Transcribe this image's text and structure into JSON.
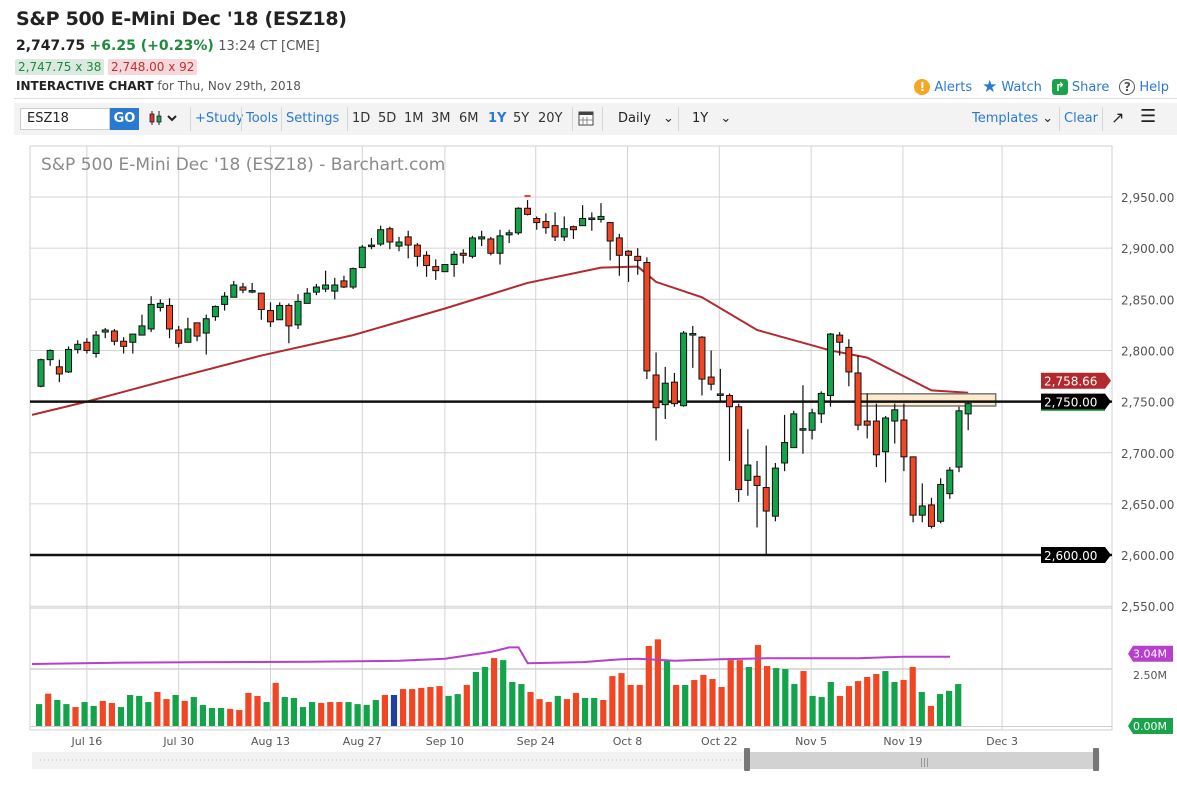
{
  "header": {
    "title": "S&P 500 E-Mini Dec '18 (ESZ18)",
    "last": "2,747.75",
    "change": "+6.25 (+0.23%)",
    "time": "13:24 CT [CME]",
    "bid": "2,747.75 x 38",
    "ask": "2,748.00 x 92",
    "chart_label": "INTERACTIVE CHART",
    "chart_for": "for Thu, Nov 29th, 2018"
  },
  "actions": [
    {
      "label": "Alerts",
      "icon": "alert-icon",
      "color": "#f5a623"
    },
    {
      "label": "Watch",
      "icon": "star-icon",
      "color": "#2a7ad1"
    },
    {
      "label": "Share",
      "icon": "share-icon",
      "color": "#1aa34a"
    },
    {
      "label": "Help",
      "icon": "help-icon",
      "color": "#555555"
    }
  ],
  "toolbar": {
    "symbol": "ESZ18",
    "go": "GO",
    "study": "+Study",
    "tools": "Tools",
    "settings": "Settings",
    "ranges": [
      "1D",
      "5D",
      "1M",
      "3M",
      "6M",
      "1Y",
      "5Y",
      "20Y"
    ],
    "selected_range": "1Y",
    "interval": "Daily",
    "period": "1Y",
    "templates": "Templates",
    "clear": "Clear"
  },
  "chart_data": {
    "type": "candlestick",
    "title": "S&P 500 E-Mini Dec '18 (ESZ18) - Barchart.com",
    "y_ticks": [
      "2,950.00",
      "2,900.00",
      "2,850.00",
      "2,800.00",
      "2,750.00",
      "2,700.00",
      "2,650.00",
      "2,600.00",
      "2,550.00"
    ],
    "y_tick_values": [
      2950,
      2900,
      2850,
      2800,
      2750,
      2700,
      2650,
      2600,
      2550
    ],
    "ylim": [
      2550,
      2950
    ],
    "x_ticks": [
      "Jul 16",
      "Jul 30",
      "Aug 13",
      "Aug 27",
      "Sep 10",
      "Sep 24",
      "Oct 8",
      "Oct 22",
      "Nov 5",
      "Nov 19",
      "Dec 3"
    ],
    "x_tick_index": [
      5,
      15,
      25,
      35,
      44,
      54,
      64,
      74,
      84,
      94,
      104.8
    ],
    "candles_ohlc": [
      [
        2765,
        2792,
        2764,
        2791
      ],
      [
        2791,
        2801,
        2785,
        2800
      ],
      [
        2784,
        2791,
        2769,
        2777
      ],
      [
        2779,
        2804,
        2778,
        2801
      ],
      [
        2801,
        2810,
        2797,
        2806
      ],
      [
        2808,
        2812,
        2797,
        2800
      ],
      [
        2797,
        2819,
        2793,
        2815
      ],
      [
        2818,
        2822,
        2812,
        2820
      ],
      [
        2819,
        2821,
        2805,
        2809
      ],
      [
        2809,
        2813,
        2797,
        2804
      ],
      [
        2808,
        2816,
        2797,
        2816
      ],
      [
        2815,
        2835,
        2815,
        2824
      ],
      [
        2821,
        2853,
        2818,
        2845
      ],
      [
        2842,
        2850,
        2838,
        2846
      ],
      [
        2844,
        2851,
        2812,
        2821
      ],
      [
        2820,
        2824,
        2803,
        2807
      ],
      [
        2808,
        2832,
        2808,
        2821
      ],
      [
        2827,
        2827,
        2809,
        2814
      ],
      [
        2817,
        2835,
        2796,
        2831
      ],
      [
        2833,
        2844,
        2829,
        2843
      ],
      [
        2845,
        2857,
        2839,
        2853
      ],
      [
        2852,
        2868,
        2852,
        2864
      ],
      [
        2862,
        2866,
        2856,
        2859
      ],
      [
        2858,
        2866,
        2856,
        2858.5
      ],
      [
        2856,
        2856,
        2830,
        2840
      ],
      [
        2839,
        2847,
        2823,
        2828
      ],
      [
        2830,
        2847,
        2830,
        2844
      ],
      [
        2844,
        2846,
        2807,
        2824
      ],
      [
        2825,
        2855,
        2821,
        2848
      ],
      [
        2846,
        2861,
        2846,
        2856
      ],
      [
        2857,
        2865,
        2854,
        2862
      ],
      [
        2860,
        2878,
        2857,
        2864
      ],
      [
        2858,
        2871,
        2850,
        2864
      ],
      [
        2868,
        2873,
        2861,
        2862
      ],
      [
        2862,
        2881,
        2860,
        2880
      ],
      [
        2881,
        2903,
        2881,
        2901
      ],
      [
        2902,
        2910,
        2899,
        2903
      ],
      [
        2904,
        2922,
        2902,
        2918
      ],
      [
        2919,
        2921,
        2899,
        2906
      ],
      [
        2902,
        2911,
        2897,
        2906
      ],
      [
        2911,
        2917,
        2890,
        2903
      ],
      [
        2903,
        2905,
        2882,
        2892
      ],
      [
        2893,
        2897,
        2872,
        2883
      ],
      [
        2882,
        2889,
        2869,
        2878
      ],
      [
        2877,
        2884,
        2877,
        2884
      ],
      [
        2884,
        2897,
        2872,
        2894
      ],
      [
        2895,
        2899,
        2885,
        2893
      ],
      [
        2892,
        2912,
        2890,
        2910
      ],
      [
        2909,
        2917,
        2902,
        2911
      ],
      [
        2909,
        2911,
        2893,
        2895
      ],
      [
        2895,
        2918,
        2884,
        2912
      ],
      [
        2913,
        2918,
        2905,
        2915
      ],
      [
        2915,
        2940,
        2913,
        2939
      ],
      [
        2939,
        2947,
        2932,
        2933
      ],
      [
        2929,
        2931,
        2918,
        2925
      ],
      [
        2926,
        2934,
        2914,
        2920
      ],
      [
        2922,
        2935,
        2907,
        2911
      ],
      [
        2911,
        2931,
        2907,
        2919
      ],
      [
        2921,
        2922,
        2909,
        2918
      ],
      [
        2922,
        2942,
        2922,
        2929
      ],
      [
        2929,
        2935,
        2917,
        2929.5
      ],
      [
        2928,
        2944,
        2925,
        2931
      ],
      [
        2925,
        2925,
        2888,
        2907
      ],
      [
        2910,
        2914,
        2873,
        2893
      ],
      [
        2897,
        2898,
        2867,
        2893
      ],
      [
        2892,
        2900,
        2874,
        2888
      ],
      [
        2886,
        2891,
        2772,
        2780
      ],
      [
        2776,
        2798,
        2712,
        2744
      ],
      [
        2747,
        2784,
        2733,
        2768
      ],
      [
        2769,
        2778,
        2745,
        2748
      ],
      [
        2746,
        2819,
        2745,
        2817
      ],
      [
        2816,
        2824,
        2783,
        2816.5
      ],
      [
        2813,
        2814,
        2756,
        2772
      ],
      [
        2774,
        2800,
        2761,
        2767
      ],
      [
        2757,
        2782,
        2751,
        2757.5
      ],
      [
        2756,
        2758,
        2692,
        2745
      ],
      [
        2745,
        2748,
        2652,
        2664
      ],
      [
        2673,
        2723,
        2658,
        2688
      ],
      [
        2677,
        2692,
        2627,
        2668
      ],
      [
        2666,
        2707,
        2599,
        2643
      ],
      [
        2638,
        2690,
        2633,
        2685
      ],
      [
        2690,
        2737,
        2682,
        2710
      ],
      [
        2705,
        2741,
        2705,
        2738
      ],
      [
        2723,
        2766,
        2699,
        2723.5
      ],
      [
        2722,
        2743,
        2713,
        2739
      ],
      [
        2738,
        2760,
        2729,
        2758
      ],
      [
        2756,
        2817,
        2745,
        2816
      ],
      [
        2815,
        2818,
        2795,
        2808
      ],
      [
        2803,
        2811,
        2765,
        2779
      ],
      [
        2778,
        2795,
        2722,
        2727
      ],
      [
        2731,
        2758,
        2714,
        2727
      ],
      [
        2731,
        2748,
        2686,
        2698
      ],
      [
        2701,
        2736,
        2671,
        2734
      ],
      [
        2731,
        2748,
        2709,
        2742
      ],
      [
        2732,
        2748,
        2682,
        2696
      ],
      [
        2696,
        2696,
        2632,
        2639
      ],
      [
        2639,
        2670,
        2632,
        2648
      ],
      [
        2649,
        2656,
        2626,
        2628
      ],
      [
        2633,
        2675,
        2631,
        2669
      ],
      [
        2660,
        2686,
        2655,
        2683
      ],
      [
        2686,
        2745,
        2681,
        2741
      ],
      [
        2738,
        2749,
        2722,
        2748
      ]
    ],
    "high_marker": 2951,
    "moving_average": {
      "points": [
        [
          0,
          2737
        ],
        [
          5,
          2750
        ],
        [
          15,
          2774
        ],
        [
          24,
          2795
        ],
        [
          34,
          2815
        ],
        [
          44,
          2841
        ],
        [
          53,
          2866
        ],
        [
          61,
          2881
        ],
        [
          65,
          2882
        ],
        [
          67,
          2867
        ],
        [
          72,
          2852
        ],
        [
          78,
          2820
        ],
        [
          86,
          2800
        ],
        [
          90,
          2793
        ],
        [
          97,
          2761
        ],
        [
          101,
          2758.66
        ]
      ],
      "color": "#b22a2e"
    },
    "horizontal_lines": [
      2750,
      2600
    ],
    "zone": {
      "from_index": 89,
      "to_index": 104,
      "low": 2745.7,
      "high": 2757.6
    },
    "price_tags": [
      {
        "label": "2,758.66",
        "value": 2758.66,
        "color": "#b22a2e"
      },
      {
        "label": "2,750.00",
        "value": 2750,
        "color": "#000000"
      },
      {
        "label": "2,600.00",
        "value": 2600,
        "color": "#000000"
      }
    ],
    "volume": {
      "unit": "M",
      "ylim": [
        0,
        3.8
      ],
      "ticks": [
        "2.50M"
      ],
      "tick_values": [
        2.5
      ],
      "tags": [
        {
          "label": "3.04M",
          "value": 3.04,
          "color": "#b73fcc"
        },
        {
          "label": "0.00M",
          "value": 0,
          "color": "#1aa34a"
        }
      ],
      "values": [
        0.96,
        1.42,
        1.14,
        0.96,
        0.83,
        1.05,
        0.88,
        1.1,
        1.01,
        0.83,
        1.36,
        1.32,
        1.05,
        1.49,
        1.18,
        1.36,
        1.1,
        1.27,
        0.92,
        0.79,
        0.79,
        0.75,
        0.7,
        1.45,
        1.32,
        1.05,
        1.89,
        1.27,
        1.23,
        0.83,
        1.05,
        1.01,
        1.05,
        1.05,
        1.05,
        0.96,
        0.92,
        1.14,
        1.36,
        1.36,
        1.62,
        1.62,
        1.67,
        1.71,
        1.75,
        1.32,
        1.4,
        1.8,
        2.37,
        2.59,
        2.98,
        2.89,
        1.93,
        1.84,
        1.49,
        1.18,
        1.05,
        1.32,
        1.18,
        1.45,
        1.23,
        1.23,
        1.14,
        2.19,
        2.32,
        1.8,
        1.8,
        3.51,
        3.8,
        2.89,
        1.8,
        1.8,
        2.02,
        2.24,
        2.06,
        1.71,
        2.89,
        2.89,
        2.59,
        3.55,
        2.63,
        2.54,
        2.5,
        1.84,
        2.41,
        1.32,
        1.27,
        1.93,
        1.32,
        1.75,
        1.97,
        2.15,
        2.28,
        2.41,
        1.93,
        2.02,
        2.59,
        1.49,
        0.88,
        1.4,
        1.54,
        1.84
      ],
      "colors": "GRGGRGGRRGGGGRRGRGGGGRRRRGRGGGGRRRGGGGRBRRRRRGGRGGRGGGRRRGRRGGRRRRRRRGRGRRRRRRGRRGGGRGGGRRRRRGGRRGRGGG",
      "ma_points": [
        [
          0,
          2.72
        ],
        [
          10,
          2.78
        ],
        [
          20,
          2.8
        ],
        [
          30,
          2.82
        ],
        [
          40,
          2.86
        ],
        [
          45,
          2.95
        ],
        [
          50,
          3.25
        ],
        [
          52,
          3.45
        ],
        [
          53,
          3.45
        ],
        [
          54,
          2.75
        ],
        [
          60,
          2.8
        ],
        [
          64,
          2.92
        ],
        [
          66,
          2.95
        ],
        [
          70,
          2.86
        ],
        [
          75,
          2.93
        ],
        [
          80,
          2.97
        ],
        [
          90,
          2.97
        ],
        [
          95,
          3.04
        ],
        [
          100,
          3.04
        ]
      ]
    }
  }
}
